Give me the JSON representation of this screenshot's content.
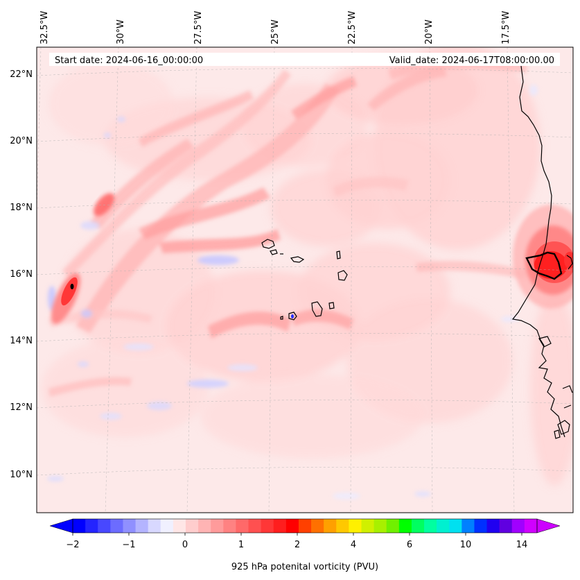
{
  "header": {
    "start_date": "Start date: 2024-06-16_00:00:00",
    "valid_date": "Valid_date: 2024-06-17T08:00:00.00"
  },
  "map": {
    "projection": "Lambert conformal",
    "lon_labels": [
      "32.5°W",
      "30°W",
      "27.5°W",
      "25°W",
      "22.5°W",
      "20°W",
      "17.5°W"
    ],
    "lat_labels": [
      "22°N",
      "20°N",
      "18°N",
      "16°N",
      "14°N",
      "12°N",
      "10°N"
    ],
    "background_color": "#fde9e9"
  },
  "colorbar": {
    "label": "925 hPa potenital vorticity (PVU)",
    "tick_labels": [
      "−2",
      "−1",
      "0",
      "1",
      "2",
      "4",
      "6",
      "10",
      "14"
    ],
    "colors": [
      "#0000ff",
      "#2424ff",
      "#4848ff",
      "#6c6cff",
      "#9090ff",
      "#b4b4ff",
      "#d8d8ff",
      "#f0f0ff",
      "#ffe6e6",
      "#ffcdcd",
      "#ffb4b4",
      "#ff9b9b",
      "#ff8282",
      "#ff6969",
      "#ff5050",
      "#ff3737",
      "#ff1e1e",
      "#ff0000",
      "#ff4000",
      "#ff7000",
      "#ffa000",
      "#ffc800",
      "#fff000",
      "#d0f000",
      "#a8f000",
      "#70f000",
      "#00ff00",
      "#00ff60",
      "#00ffa0",
      "#00f0d0",
      "#00e0f0",
      "#0080ff",
      "#0030ff",
      "#2000f0",
      "#6000e0",
      "#a000ff",
      "#d000ff"
    ],
    "under_color": "#0000ff",
    "over_color": "#cc00ff"
  }
}
